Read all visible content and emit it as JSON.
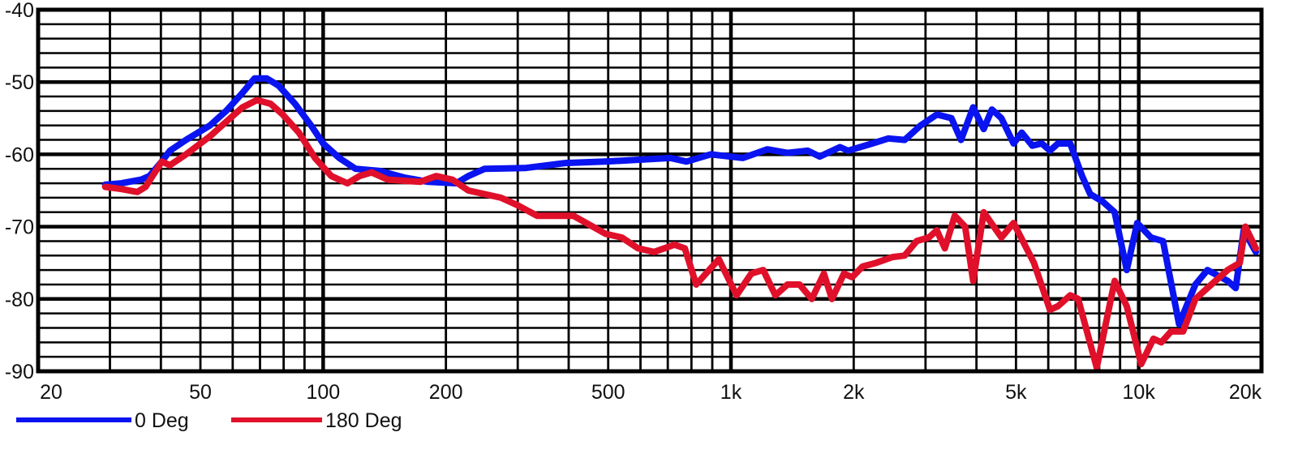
{
  "chart_data": {
    "type": "line",
    "title": "",
    "xlabel": "",
    "ylabel": "",
    "x_scale": "log",
    "xlim": [
      20,
      20000
    ],
    "ylim": [
      -90,
      -40
    ],
    "grid": true,
    "legend_position": "bottom-left",
    "x_tick_labels": [
      {
        "value": 20,
        "label": "20"
      },
      {
        "value": 50,
        "label": "50"
      },
      {
        "value": 100,
        "label": "100"
      },
      {
        "value": 200,
        "label": "200"
      },
      {
        "value": 500,
        "label": "500"
      },
      {
        "value": 1000,
        "label": "1k"
      },
      {
        "value": 2000,
        "label": "2k"
      },
      {
        "value": 5000,
        "label": "5k"
      },
      {
        "value": 10000,
        "label": "10k"
      },
      {
        "value": 20000,
        "label": "20k"
      }
    ],
    "y_tick_labels": [
      {
        "value": -40,
        "label": "-40"
      },
      {
        "value": -50,
        "label": "-50"
      },
      {
        "value": -60,
        "label": "-60"
      },
      {
        "value": -70,
        "label": "-70"
      },
      {
        "value": -80,
        "label": "-80"
      },
      {
        "value": -90,
        "label": "-90"
      }
    ],
    "series": [
      {
        "name": "0 Deg",
        "color": "#0a14f0",
        "points": [
          [
            29.2,
            -64.2
          ],
          [
            32,
            -64
          ],
          [
            35.8,
            -63.5
          ],
          [
            37.5,
            -63
          ],
          [
            40.2,
            -61
          ],
          [
            42.1,
            -59.5
          ],
          [
            46.1,
            -58
          ],
          [
            52.8,
            -56
          ],
          [
            57.8,
            -54
          ],
          [
            63.4,
            -51.5
          ],
          [
            67.9,
            -49.5
          ],
          [
            72.7,
            -49.5
          ],
          [
            77.8,
            -50.5
          ],
          [
            85.3,
            -53
          ],
          [
            93.4,
            -56
          ],
          [
            100,
            -58.5
          ],
          [
            109.5,
            -60.5
          ],
          [
            120,
            -62
          ],
          [
            137.6,
            -62.3
          ],
          [
            157.8,
            -63.2
          ],
          [
            180.8,
            -63.8
          ],
          [
            212,
            -64
          ],
          [
            227,
            -63
          ],
          [
            249,
            -62
          ],
          [
            312.6,
            -61.9
          ],
          [
            392.6,
            -61.2
          ],
          [
            493,
            -61
          ],
          [
            710,
            -60.5
          ],
          [
            778,
            -61
          ],
          [
            892,
            -60
          ],
          [
            1070,
            -60.5
          ],
          [
            1228,
            -59.3
          ],
          [
            1376,
            -59.8
          ],
          [
            1542,
            -59.5
          ],
          [
            1651,
            -60.3
          ],
          [
            1851,
            -59
          ],
          [
            1937,
            -59.5
          ],
          [
            2222,
            -58.5
          ],
          [
            2432,
            -57.8
          ],
          [
            2666,
            -58
          ],
          [
            2920,
            -56
          ],
          [
            3198,
            -54.5
          ],
          [
            3473,
            -55
          ],
          [
            3665,
            -58
          ],
          [
            3926,
            -53.5
          ],
          [
            4168,
            -56.5
          ],
          [
            4364,
            -53.8
          ],
          [
            4606,
            -55
          ],
          [
            4933,
            -58.5
          ],
          [
            5165,
            -57
          ],
          [
            5482,
            -58.8
          ],
          [
            5786,
            -58.5
          ],
          [
            6056,
            -59.5
          ],
          [
            6340,
            -58.5
          ],
          [
            6790,
            -58.5
          ],
          [
            7264,
            -63
          ],
          [
            7605,
            -65.5
          ],
          [
            8146,
            -66.5
          ],
          [
            8727,
            -68
          ],
          [
            9345,
            -76
          ],
          [
            9913,
            -69.5
          ],
          [
            10715,
            -71.5
          ],
          [
            11470,
            -72
          ],
          [
            12560,
            -83.5
          ],
          [
            13770,
            -78
          ],
          [
            14740,
            -76
          ],
          [
            16520,
            -77.5
          ],
          [
            17290,
            -78.5
          ],
          [
            18090,
            -70.5
          ],
          [
            19370,
            -73.5
          ]
        ]
      },
      {
        "name": "180 Deg",
        "color": "#e0102a",
        "points": [
          [
            29.2,
            -64.5
          ],
          [
            32,
            -64.8
          ],
          [
            35,
            -65.2
          ],
          [
            36.7,
            -64.5
          ],
          [
            40.2,
            -61
          ],
          [
            42.1,
            -61.5
          ],
          [
            46.1,
            -60
          ],
          [
            52.8,
            -57.5
          ],
          [
            57.8,
            -55.5
          ],
          [
            63.4,
            -53.5
          ],
          [
            68.8,
            -52.5
          ],
          [
            74.3,
            -53
          ],
          [
            79.6,
            -54.5
          ],
          [
            87.2,
            -57
          ],
          [
            95.5,
            -60.5
          ],
          [
            104.7,
            -63
          ],
          [
            114.7,
            -64
          ],
          [
            122.8,
            -63
          ],
          [
            131.5,
            -62.5
          ],
          [
            144,
            -63.5
          ],
          [
            172.9,
            -63.8
          ],
          [
            189.3,
            -63
          ],
          [
            207.4,
            -63.5
          ],
          [
            227,
            -65
          ],
          [
            272.7,
            -66
          ],
          [
            298.6,
            -67
          ],
          [
            334.8,
            -68.5
          ],
          [
            411,
            -68.5
          ],
          [
            493,
            -71
          ],
          [
            540,
            -71.5
          ],
          [
            592,
            -73
          ],
          [
            648,
            -73.5
          ],
          [
            727,
            -72.5
          ],
          [
            771,
            -73
          ],
          [
            822,
            -78
          ],
          [
            934,
            -74.5
          ],
          [
            1032,
            -79.5
          ],
          [
            1121,
            -76.5
          ],
          [
            1200,
            -76
          ],
          [
            1285,
            -79.5
          ],
          [
            1376,
            -78
          ],
          [
            1473,
            -78
          ],
          [
            1578,
            -80
          ],
          [
            1690,
            -76.5
          ],
          [
            1769,
            -80
          ],
          [
            1893,
            -76.5
          ],
          [
            1982,
            -77
          ],
          [
            2103,
            -75.5
          ],
          [
            2271,
            -75
          ],
          [
            2489,
            -74.2
          ],
          [
            2666,
            -74
          ],
          [
            2853,
            -72
          ],
          [
            3056,
            -71.5
          ],
          [
            3198,
            -70.5
          ],
          [
            3347,
            -73
          ],
          [
            3538,
            -68.5
          ],
          [
            3752,
            -70
          ],
          [
            3926,
            -77.5
          ],
          [
            4168,
            -68
          ],
          [
            4606,
            -71.5
          ],
          [
            4933,
            -69.5
          ],
          [
            5533,
            -75
          ],
          [
            6056,
            -81.5
          ],
          [
            6340,
            -81
          ],
          [
            6790,
            -79.5
          ],
          [
            7103,
            -80
          ],
          [
            7889,
            -89.5
          ],
          [
            8727,
            -77.5
          ],
          [
            9345,
            -81
          ],
          [
            10140,
            -89
          ],
          [
            10865,
            -85.5
          ],
          [
            11360,
            -86
          ],
          [
            12000,
            -84.5
          ],
          [
            12850,
            -84.5
          ],
          [
            13770,
            -80
          ],
          [
            15070,
            -78
          ],
          [
            16520,
            -76
          ],
          [
            17700,
            -75
          ],
          [
            18260,
            -70
          ],
          [
            19370,
            -73
          ]
        ]
      }
    ]
  }
}
